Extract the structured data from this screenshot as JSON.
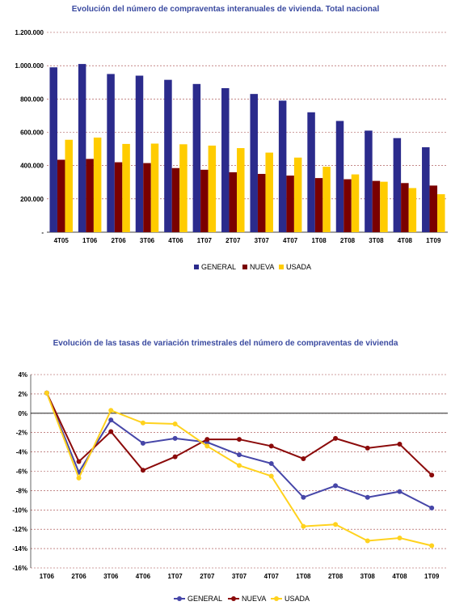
{
  "chart_data": [
    {
      "type": "bar",
      "title": "Evolución del número de compraventas interanuales de vivienda. Total nacional",
      "categories": [
        "4T05",
        "1T06",
        "2T06",
        "3T06",
        "4T06",
        "1T07",
        "2T07",
        "3T07",
        "4T07",
        "1T08",
        "2T08",
        "3T08",
        "4T08",
        "1T09"
      ],
      "ylim": [
        0,
        1200000
      ],
      "ytick_labels": [
        "-",
        "200.000",
        "400.000",
        "600.000",
        "800.000",
        "1.000.000",
        "1.200.000"
      ],
      "grid": true,
      "legend": "bottom",
      "series": [
        {
          "name": "GENERAL",
          "color": "#2b2b8c",
          "values": [
            990000,
            1010000,
            950000,
            940000,
            915000,
            890000,
            865000,
            830000,
            790000,
            720000,
            668000,
            610000,
            565000,
            510000
          ]
        },
        {
          "name": "NUEVA",
          "color": "#7a0000",
          "values": [
            435000,
            440000,
            420000,
            415000,
            385000,
            375000,
            360000,
            350000,
            340000,
            325000,
            318000,
            308000,
            295000,
            280000
          ]
        },
        {
          "name": "USADA",
          "color": "#ffcc00",
          "values": [
            555000,
            568000,
            530000,
            532000,
            528000,
            520000,
            505000,
            478000,
            448000,
            393000,
            347000,
            303000,
            265000,
            228000
          ]
        }
      ]
    },
    {
      "type": "line",
      "title": "Evolución de las tasas de variación trimestrales del número de compraventas de vivienda",
      "categories": [
        "1T06",
        "2T06",
        "3T06",
        "4T06",
        "1T07",
        "2T07",
        "3T07",
        "4T07",
        "1T08",
        "2T08",
        "3T08",
        "4T08",
        "1T09"
      ],
      "ylim": [
        -16,
        4
      ],
      "ytick_labels": [
        "-16%",
        "-14%",
        "-12%",
        "-10%",
        "-8%",
        "-6%",
        "-4%",
        "-2%",
        "0%",
        "2%",
        "4%"
      ],
      "grid": true,
      "legend": "bottom",
      "series": [
        {
          "name": "GENERAL",
          "color": "#4646a8",
          "values": [
            2.1,
            -6.1,
            -0.7,
            -3.1,
            -2.6,
            -3.0,
            -4.3,
            -5.2,
            -8.7,
            -7.5,
            -8.7,
            -8.1,
            -9.8
          ]
        },
        {
          "name": "NUEVA",
          "color": "#8b0a0a",
          "values": [
            2.1,
            -5.0,
            -1.9,
            -5.9,
            -4.5,
            -2.7,
            -2.7,
            -3.4,
            -4.7,
            -2.6,
            -3.6,
            -3.2,
            -6.4
          ]
        },
        {
          "name": "USADA",
          "color": "#ffd21e",
          "values": [
            2.1,
            -6.7,
            0.3,
            -1.0,
            -1.1,
            -3.4,
            -5.4,
            -6.5,
            -11.7,
            -11.5,
            -13.2,
            -12.9,
            -13.7
          ]
        }
      ]
    }
  ]
}
